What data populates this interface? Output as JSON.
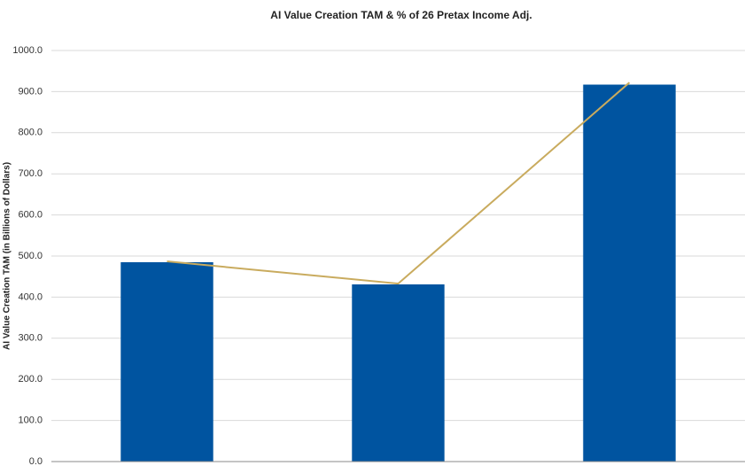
{
  "chart_data": {
    "type": "bar",
    "title": "AI Value Creation TAM & % of 26 Pretax Income Adj.",
    "y_label": "AI Value Creation TAM (in Billions of Dollars)",
    "categories": [
      null,
      null,
      null
    ],
    "series": [
      {
        "type": "bar",
        "color": "#0054a0",
        "values": [
          485,
          431,
          917
        ]
      },
      {
        "type": "line",
        "color": "#c9ab5e",
        "values": [
          487,
          433,
          922
        ]
      }
    ],
    "ylim": [
      0,
      1000
    ],
    "yticks": [
      {
        "value": 0,
        "label": "0.0"
      },
      {
        "value": 100,
        "label": "100.0"
      },
      {
        "value": 200,
        "label": "200.0"
      },
      {
        "value": 300,
        "label": "300.0"
      },
      {
        "value": 400,
        "label": "400.0"
      },
      {
        "value": 500,
        "label": "500.0"
      },
      {
        "value": 600,
        "label": "600.0"
      },
      {
        "value": 700,
        "label": "700.0"
      },
      {
        "value": 800,
        "label": "800.0"
      },
      {
        "value": 900,
        "label": "900.0"
      },
      {
        "value": 1000,
        "label": "1000.0"
      }
    ],
    "grid": true
  }
}
